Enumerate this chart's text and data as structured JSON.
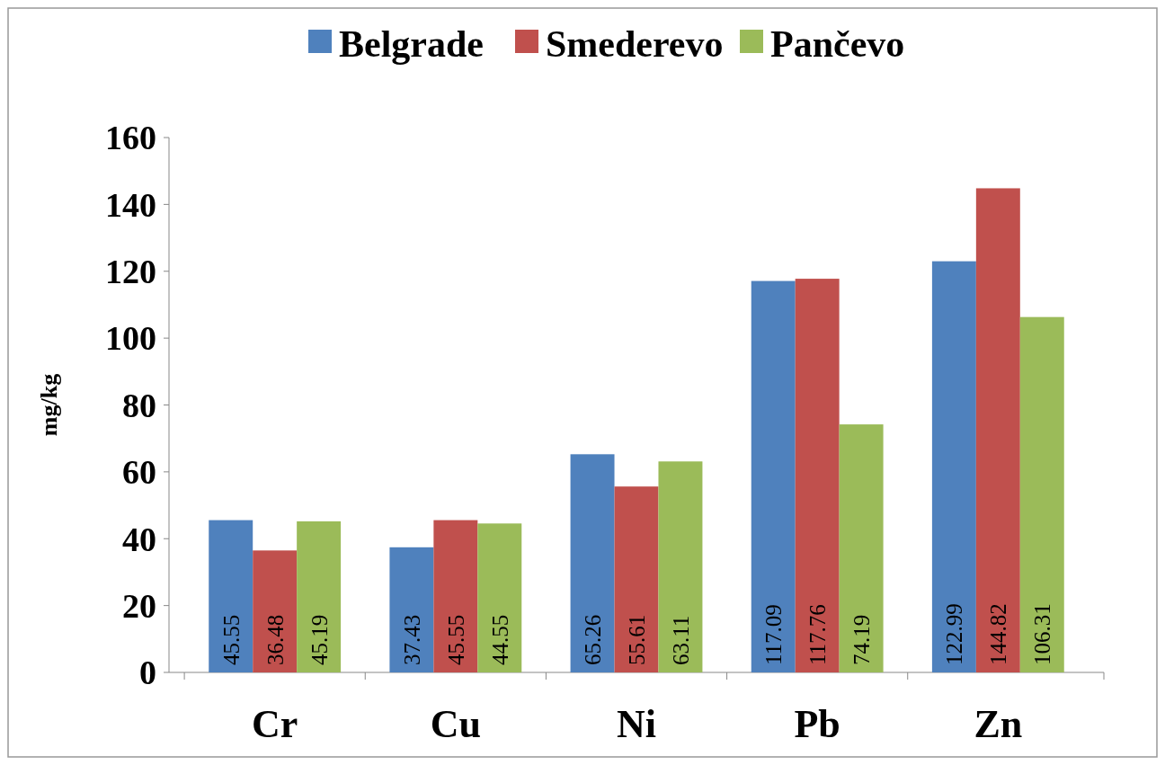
{
  "chart_data": {
    "type": "bar",
    "ylabel": "mg/kg",
    "categories": [
      "Cr",
      "Cu",
      "Ni",
      "Pb",
      "Zn"
    ],
    "series": [
      {
        "name": "Belgrade",
        "color": "#4f81bd",
        "values": [
          45.55,
          37.43,
          65.26,
          117.09,
          122.99
        ]
      },
      {
        "name": "Smederevo",
        "color": "#c0504d",
        "values": [
          36.48,
          45.55,
          55.61,
          117.76,
          144.82
        ]
      },
      {
        "name": "Pančevo",
        "color": "#9bbb59",
        "values": [
          45.19,
          44.55,
          63.11,
          74.19,
          106.31
        ]
      }
    ],
    "ylim": [
      0,
      160
    ],
    "yticks": [
      0,
      20,
      40,
      60,
      80,
      100,
      120,
      140,
      160
    ],
    "legend": "top",
    "data_labels": true,
    "grid": false
  }
}
